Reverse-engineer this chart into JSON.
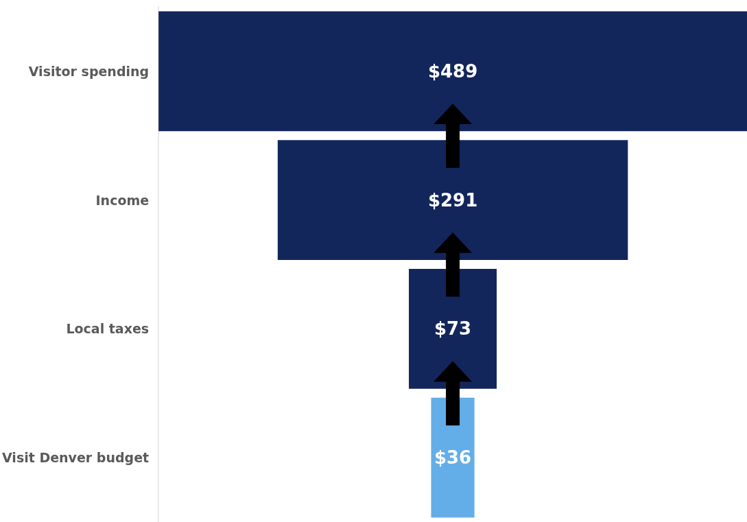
{
  "chart_data": {
    "type": "other",
    "categories": [
      "Visitor spending",
      "Income",
      "Local taxes",
      "Visit Denver budget"
    ],
    "values": [
      489,
      291,
      73,
      36
    ],
    "colors": [
      "#13265c",
      "#13265c",
      "#13265c",
      "#63aee8"
    ],
    "value_labels": [
      "$489",
      "$291",
      "$73",
      "$36"
    ]
  }
}
